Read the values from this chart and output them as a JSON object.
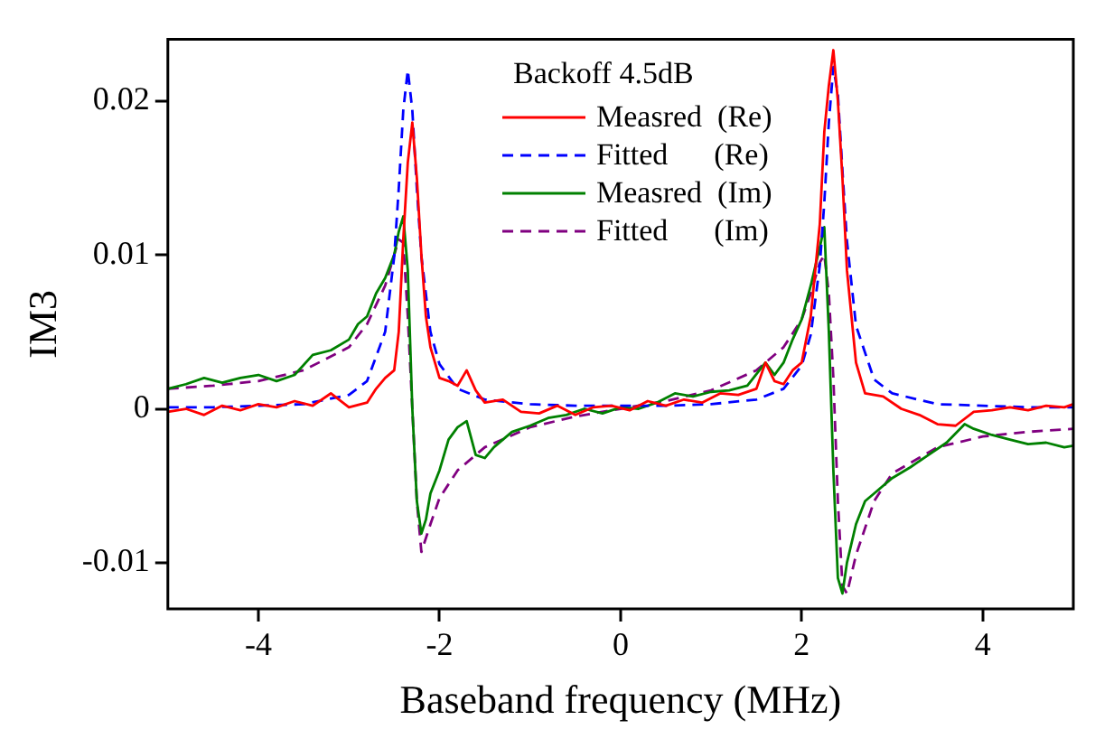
{
  "chart_data": {
    "type": "line",
    "xlabel": "Baseband frequency (MHz)",
    "ylabel": "IM3",
    "legend_title": "Backoff 4.5dB",
    "legend": "top",
    "grid": false,
    "marker": "none",
    "xlim": [
      -5,
      5
    ],
    "xticks": [
      -4,
      -2,
      0,
      2,
      4
    ],
    "ylim": [
      -0.013,
      0.024
    ],
    "yticks": [
      -0.01,
      0,
      0.01,
      0.02
    ],
    "series": [
      {
        "name": "Measred  (Re)",
        "color": "#ff0000",
        "line_style": "solid",
        "x": [
          -5,
          -4.8,
          -4.6,
          -4.4,
          -4.2,
          -4,
          -3.8,
          -3.6,
          -3.4,
          -3.2,
          -3,
          -2.8,
          -2.7,
          -2.6,
          -2.5,
          -2.45,
          -2.4,
          -2.35,
          -2.3,
          -2.25,
          -2.2,
          -2.15,
          -2.1,
          -2,
          -1.9,
          -1.8,
          -1.7,
          -1.6,
          -1.5,
          -1.3,
          -1.1,
          -0.9,
          -0.7,
          -0.5,
          -0.3,
          -0.1,
          0.1,
          0.3,
          0.5,
          0.7,
          0.9,
          1.1,
          1.3,
          1.5,
          1.6,
          1.7,
          1.8,
          1.9,
          2,
          2.1,
          2.2,
          2.25,
          2.3,
          2.35,
          2.4,
          2.45,
          2.5,
          2.6,
          2.7,
          2.9,
          3.1,
          3.3,
          3.5,
          3.7,
          3.9,
          4.1,
          4.3,
          4.5,
          4.7,
          4.9,
          5
        ],
        "values": [
          -0.0002,
          0,
          -0.0004,
          0.0002,
          -0.0001,
          0.0003,
          0.0001,
          0.0005,
          0.0002,
          0.001,
          0.0001,
          0.0004,
          0.0013,
          0.002,
          0.0025,
          0.005,
          0.011,
          0.016,
          0.0186,
          0.015,
          0.01,
          0.006,
          0.004,
          0.002,
          0.0018,
          0.0015,
          0.0025,
          0.0012,
          0.0004,
          0.0006,
          -0.0002,
          -0.0003,
          0.0002,
          -0.0004,
          0.0001,
          0.0002,
          -0.0001,
          0.0005,
          0.0002,
          0.0006,
          0.0004,
          0.001,
          0.0009,
          0.0013,
          0.003,
          0.0018,
          0.0016,
          0.0025,
          0.003,
          0.006,
          0.012,
          0.018,
          0.021,
          0.0233,
          0.02,
          0.015,
          0.009,
          0.003,
          0.001,
          0.0008,
          0,
          -0.0004,
          -0.001,
          -0.0011,
          -0.0002,
          -0.0001,
          0.0001,
          -0.0001,
          0.0002,
          0.0001,
          0.0003
        ]
      },
      {
        "name": "Fitted      (Re)",
        "color": "#0000ff",
        "line_style": "dashed",
        "x": [
          -5,
          -4.5,
          -4,
          -3.5,
          -3,
          -2.8,
          -2.6,
          -2.5,
          -2.45,
          -2.4,
          -2.35,
          -2.3,
          -2.25,
          -2.2,
          -2.1,
          -2,
          -1.8,
          -1.5,
          -1,
          -0.5,
          0,
          0.5,
          1,
          1.5,
          1.8,
          2,
          2.1,
          2.2,
          2.25,
          2.3,
          2.35,
          2.4,
          2.45,
          2.5,
          2.6,
          2.8,
          3,
          3.5,
          4,
          4.5,
          5
        ],
        "values": [
          0.0001,
          0.0001,
          0.0002,
          0.0003,
          0.0009,
          0.0018,
          0.005,
          0.0099,
          0.0143,
          0.0194,
          0.022,
          0.0194,
          0.0143,
          0.0099,
          0.005,
          0.0029,
          0.0013,
          0.0006,
          0.0003,
          0.0002,
          0.0002,
          0.0002,
          0.0003,
          0.0006,
          0.0013,
          0.0028,
          0.0048,
          0.0093,
          0.0134,
          0.0186,
          0.0222,
          0.0204,
          0.0155,
          0.0109,
          0.0054,
          0.0019,
          0.001,
          0.0003,
          0.0002,
          0.0001,
          0.0001
        ]
      },
      {
        "name": "Measred  (Im)",
        "color": "#008000",
        "line_style": "solid",
        "x": [
          -5,
          -4.8,
          -4.6,
          -4.4,
          -4.2,
          -4,
          -3.8,
          -3.6,
          -3.4,
          -3.2,
          -3,
          -2.9,
          -2.8,
          -2.7,
          -2.6,
          -2.5,
          -2.45,
          -2.4,
          -2.35,
          -2.3,
          -2.25,
          -2.2,
          -2.15,
          -2.1,
          -2,
          -1.9,
          -1.8,
          -1.7,
          -1.6,
          -1.5,
          -1.4,
          -1.2,
          -1,
          -0.8,
          -0.6,
          -0.4,
          -0.2,
          0,
          0.2,
          0.4,
          0.6,
          0.8,
          1,
          1.2,
          1.4,
          1.6,
          1.7,
          1.8,
          1.9,
          2,
          2.1,
          2.2,
          2.25,
          2.3,
          2.35,
          2.4,
          2.45,
          2.5,
          2.6,
          2.7,
          2.8,
          3,
          3.2,
          3.4,
          3.6,
          3.8,
          3.9,
          4.1,
          4.3,
          4.5,
          4.7,
          4.9,
          5
        ],
        "values": [
          0.0013,
          0.0016,
          0.002,
          0.0017,
          0.002,
          0.0022,
          0.0018,
          0.0022,
          0.0035,
          0.0038,
          0.0045,
          0.0055,
          0.006,
          0.0075,
          0.0085,
          0.01,
          0.0115,
          0.0125,
          0.009,
          0,
          -0.006,
          -0.0081,
          -0.0072,
          -0.0055,
          -0.004,
          -0.002,
          -0.0012,
          -0.0008,
          -0.003,
          -0.0032,
          -0.0025,
          -0.0015,
          -0.0011,
          -0.0006,
          -0.0004,
          0,
          -0.0003,
          0.0001,
          0,
          0.0004,
          0.001,
          0.0008,
          0.0011,
          0.0012,
          0.0015,
          0.003,
          0.0022,
          0.003,
          0.0045,
          0.0058,
          0.008,
          0.0105,
          0.0118,
          0.005,
          -0.004,
          -0.011,
          -0.012,
          -0.01,
          -0.0075,
          -0.006,
          -0.0055,
          -0.0045,
          -0.0038,
          -0.003,
          -0.0022,
          -0.001,
          -0.0013,
          -0.0017,
          -0.002,
          -0.0023,
          -0.0022,
          -0.0025,
          -0.0024
        ]
      },
      {
        "name": "Fitted      (Im)",
        "color": "#800080",
        "line_style": "dashed",
        "x": [
          -5,
          -4.5,
          -4,
          -3.5,
          -3,
          -2.8,
          -2.6,
          -2.5,
          -2.45,
          -2.4,
          -2.35,
          -2.3,
          -2.25,
          -2.2,
          -2.1,
          -2,
          -1.8,
          -1.5,
          -1,
          -0.5,
          0,
          0.5,
          1,
          1.5,
          1.8,
          2,
          2.1,
          2.2,
          2.25,
          2.3,
          2.35,
          2.4,
          2.45,
          2.5,
          2.6,
          2.8,
          3,
          3.5,
          4,
          4.5,
          5
        ],
        "values": [
          0.0013,
          0.0015,
          0.0018,
          0.0025,
          0.004,
          0.0055,
          0.008,
          0.01,
          0.011,
          0.0108,
          0.006,
          0,
          -0.006,
          -0.0093,
          -0.0075,
          -0.0058,
          -0.004,
          -0.0025,
          -0.0012,
          -0.0005,
          0,
          0.0005,
          0.0012,
          0.0025,
          0.004,
          0.0058,
          0.0075,
          0.0095,
          0.01,
          0.0075,
          0.002,
          -0.006,
          -0.0115,
          -0.012,
          -0.0095,
          -0.006,
          -0.0042,
          -0.0025,
          -0.0018,
          -0.0015,
          -0.0013
        ]
      }
    ]
  }
}
